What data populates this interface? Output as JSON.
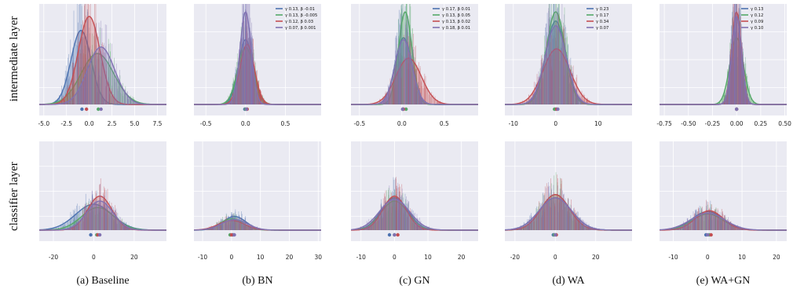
{
  "colors": {
    "blue": "#4c72b0",
    "green": "#55a868",
    "red": "#c44e52",
    "purple": "#8172b2",
    "panel_bg": "#eaeaf2",
    "grid": "#ffffff"
  },
  "row_labels": [
    "intermediate layer",
    "classifier layer"
  ],
  "chart_data": [
    {
      "id": "baseline-top",
      "type": "area",
      "caption": "(a) Baseline",
      "xlim": [
        -5.5,
        8.5
      ],
      "xticks": [
        "-5.0",
        "-2.5",
        "0.0",
        "2.5",
        "5.0",
        "7.5"
      ],
      "xtick_values": [
        -5,
        -2.5,
        0,
        2.5,
        5,
        7.5
      ],
      "legend": [],
      "series": [
        {
          "color": "blue",
          "mu": -0.9,
          "sigma": 1.1,
          "peak": 0.8,
          "mean_marker": -0.8
        },
        {
          "color": "green",
          "mu": 0.9,
          "sigma": 1.8,
          "peak": 0.55,
          "mean_marker": 1.0
        },
        {
          "color": "red",
          "mu": 0.0,
          "sigma": 1.2,
          "peak": 0.95,
          "mean_marker": -0.3
        },
        {
          "color": "purple",
          "mu": 1.3,
          "sigma": 1.5,
          "peak": 0.62,
          "mean_marker": 1.3
        }
      ]
    },
    {
      "id": "bn-top",
      "type": "area",
      "caption": "(b) BN",
      "xlim": [
        -0.65,
        0.95
      ],
      "xticks": [
        "-0.5",
        "0.0",
        "0.5"
      ],
      "xtick_values": [
        -0.5,
        0,
        0.5
      ],
      "legend": [
        "γ 0.13, β -0.01",
        "γ 0.13, β -0.005",
        "γ 0.12, β 0.03",
        "γ 0.07, β 0.001"
      ],
      "series": [
        {
          "color": "blue",
          "mu": 0.0,
          "sigma": 0.09,
          "peak": 0.7,
          "mean_marker": -0.01
        },
        {
          "color": "green",
          "mu": 0.0,
          "sigma": 0.1,
          "peak": 0.62,
          "mean_marker": 0.0
        },
        {
          "color": "red",
          "mu": 0.02,
          "sigma": 0.09,
          "peak": 0.65,
          "mean_marker": 0.02
        },
        {
          "color": "purple",
          "mu": 0.0,
          "sigma": 0.07,
          "peak": 1.0,
          "mean_marker": 0.01
        }
      ]
    },
    {
      "id": "gn-top",
      "type": "area",
      "caption": "(c) GN",
      "xlim": [
        -0.6,
        0.9
      ],
      "xticks": [
        "-0.5",
        "0.0",
        "0.5"
      ],
      "xtick_values": [
        -0.5,
        0,
        0.5
      ],
      "legend": [
        "γ 0.17, β 0.01",
        "γ 0.13, β 0.05",
        "γ 0.13, β 0.02",
        "γ 0.18, β 0.01"
      ],
      "series": [
        {
          "color": "blue",
          "mu": 0.02,
          "sigma": 0.1,
          "peak": 0.72,
          "mean_marker": 0.01
        },
        {
          "color": "green",
          "mu": 0.04,
          "sigma": 0.08,
          "peak": 1.0,
          "mean_marker": 0.05
        },
        {
          "color": "red",
          "mu": 0.08,
          "sigma": 0.15,
          "peak": 0.5,
          "mean_marker": 0.02
        },
        {
          "color": "purple",
          "mu": 0.02,
          "sigma": 0.1,
          "peak": 0.7,
          "mean_marker": 0.01
        }
      ]
    },
    {
      "id": "wa-top",
      "type": "area",
      "caption": "(d) WA",
      "xlim": [
        -12,
        18
      ],
      "xticks": [
        "-10",
        "0",
        "10"
      ],
      "xtick_values": [
        -10,
        0,
        10
      ],
      "legend": [
        "γ 0.23",
        "γ 0.17",
        "γ 0.34",
        "γ 0.07"
      ],
      "series": [
        {
          "color": "blue",
          "mu": 0.0,
          "sigma": 2.4,
          "peak": 0.9,
          "mean_marker": 0.0
        },
        {
          "color": "green",
          "mu": 0.0,
          "sigma": 2.2,
          "peak": 1.0,
          "mean_marker": -0.3
        },
        {
          "color": "red",
          "mu": 0.2,
          "sigma": 3.2,
          "peak": 0.6,
          "mean_marker": 0.2
        },
        {
          "color": "purple",
          "mu": 0.0,
          "sigma": 2.5,
          "peak": 0.85,
          "mean_marker": 0.5
        }
      ]
    },
    {
      "id": "wagn-top",
      "type": "area",
      "caption": "(e) WA+GN",
      "xlim": [
        -0.8,
        0.52
      ],
      "xticks": [
        "-0.75",
        "-0.50",
        "-0.25",
        "0.00",
        "0.25",
        "0.50"
      ],
      "xtick_values": [
        -0.75,
        -0.5,
        -0.25,
        0,
        0.25,
        0.5
      ],
      "legend": [
        "γ 0.13",
        "γ 0.12",
        "γ 0.09",
        "γ 0.10"
      ],
      "series": [
        {
          "color": "blue",
          "mu": 0.0,
          "sigma": 0.05,
          "peak": 0.95,
          "mean_marker": 0.0
        },
        {
          "color": "green",
          "mu": 0.0,
          "sigma": 0.07,
          "peak": 0.72,
          "mean_marker": 0.0
        },
        {
          "color": "red",
          "mu": 0.0,
          "sigma": 0.05,
          "peak": 1.0,
          "mean_marker": 0.0
        },
        {
          "color": "purple",
          "mu": 0.0,
          "sigma": 0.05,
          "peak": 0.95,
          "mean_marker": 0.0
        }
      ]
    },
    {
      "id": "baseline-bottom",
      "type": "area",
      "xlim": [
        -27,
        36
      ],
      "xticks": [
        "-20",
        "0",
        "20"
      ],
      "xtick_values": [
        -20,
        0,
        20
      ],
      "legend": [],
      "series": [
        {
          "color": "blue",
          "mu": 0.0,
          "sigma": 9.0,
          "peak": 0.32,
          "mean_marker": -1.5
        },
        {
          "color": "green",
          "mu": 2.0,
          "sigma": 8.0,
          "peak": 0.28,
          "mean_marker": 1.5
        },
        {
          "color": "red",
          "mu": 3.0,
          "sigma": 6.0,
          "peak": 0.42,
          "mean_marker": 2.0
        },
        {
          "color": "purple",
          "mu": 3.0,
          "sigma": 6.5,
          "peak": 0.36,
          "mean_marker": 3.0
        }
      ]
    },
    {
      "id": "bn-bottom",
      "type": "area",
      "xlim": [
        -13,
        31
      ],
      "xticks": [
        "-10",
        "0",
        "10",
        "20",
        "30"
      ],
      "xtick_values": [
        -10,
        0,
        10,
        20,
        30
      ],
      "legend": [],
      "series": [
        {
          "color": "blue",
          "mu": 1.0,
          "sigma": 4.0,
          "peak": 0.17,
          "mean_marker": 0.5
        },
        {
          "color": "green",
          "mu": 0.0,
          "sigma": 4.0,
          "peak": 0.14,
          "mean_marker": -0.5
        },
        {
          "color": "red",
          "mu": 0.0,
          "sigma": 4.5,
          "peak": 0.12,
          "mean_marker": 0.0
        },
        {
          "color": "purple",
          "mu": 1.0,
          "sigma": 4.5,
          "peak": 0.13,
          "mean_marker": 1.0
        }
      ]
    },
    {
      "id": "gn-bottom",
      "type": "area",
      "xlim": [
        -13,
        25
      ],
      "xticks": [
        "-10",
        "0",
        "10",
        "20"
      ],
      "xtick_values": [
        -10,
        0,
        10,
        20
      ],
      "legend": [],
      "series": [
        {
          "color": "blue",
          "mu": 0.0,
          "sigma": 4.0,
          "peak": 0.4,
          "mean_marker": -1.5
        },
        {
          "color": "green",
          "mu": 0.0,
          "sigma": 4.0,
          "peak": 0.36,
          "mean_marker": 0.0
        },
        {
          "color": "red",
          "mu": 0.0,
          "sigma": 3.5,
          "peak": 0.42,
          "mean_marker": 1.0
        },
        {
          "color": "purple",
          "mu": 0.0,
          "sigma": 4.5,
          "peak": 0.38,
          "mean_marker": 0.0
        }
      ]
    },
    {
      "id": "wa-bottom",
      "type": "area",
      "xlim": [
        -25,
        38
      ],
      "xticks": [
        "-20",
        "0",
        "20"
      ],
      "xtick_values": [
        -20,
        0,
        20
      ],
      "legend": [],
      "series": [
        {
          "color": "blue",
          "mu": 0.0,
          "sigma": 8.0,
          "peak": 0.4,
          "mean_marker": -1.0
        },
        {
          "color": "green",
          "mu": 0.0,
          "sigma": 7.0,
          "peak": 0.44,
          "mean_marker": -0.5
        },
        {
          "color": "red",
          "mu": 0.0,
          "sigma": 7.0,
          "peak": 0.44,
          "mean_marker": 0.5
        },
        {
          "color": "purple",
          "mu": 0.0,
          "sigma": 8.0,
          "peak": 0.4,
          "mean_marker": 0.0
        }
      ]
    },
    {
      "id": "wagn-bottom",
      "type": "area",
      "xlim": [
        -14,
        23
      ],
      "xticks": [
        "-10",
        "0",
        "10",
        "20"
      ],
      "xtick_values": [
        -10,
        0,
        10,
        20
      ],
      "legend": [],
      "series": [
        {
          "color": "blue",
          "mu": 0.0,
          "sigma": 4.5,
          "peak": 0.23,
          "mean_marker": -0.5
        },
        {
          "color": "green",
          "mu": 0.0,
          "sigma": 4.5,
          "peak": 0.2,
          "mean_marker": 0.5
        },
        {
          "color": "red",
          "mu": 0.5,
          "sigma": 4.0,
          "peak": 0.24,
          "mean_marker": 1.0
        },
        {
          "color": "purple",
          "mu": 0.0,
          "sigma": 5.0,
          "peak": 0.21,
          "mean_marker": 0.0
        }
      ]
    }
  ]
}
